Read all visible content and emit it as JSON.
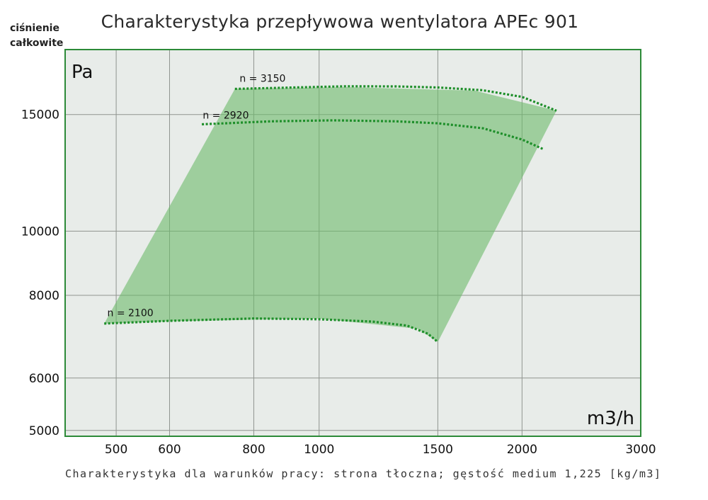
{
  "chart_data": {
    "type": "area",
    "title": "Charakterystyka przepływowa wentylatora APEc 901",
    "ylabel_lines": [
      "ciśnienie",
      "całkowite"
    ],
    "y_unit": "Pa",
    "x_unit": "m3/h",
    "footer": "Charakterystyka dla warunków pracy: strona tłoczna; gęstość medium 1,225 [kg/m3]",
    "x_scale": "log",
    "y_scale": "log",
    "xlim": [
      420,
      3000
    ],
    "ylim": [
      4900,
      18800
    ],
    "x_ticks": [
      500,
      600,
      800,
      1000,
      1500,
      2000,
      3000
    ],
    "y_ticks": [
      5000,
      6000,
      8000,
      10000,
      15000
    ],
    "x_tick_labels": [
      "500",
      "600",
      "800",
      "1000",
      "1500",
      "2000",
      "3000"
    ],
    "y_tick_labels": [
      "5000",
      "6000",
      "8000",
      "10000",
      "15000"
    ],
    "operating_area": [
      [
        480,
        7250
      ],
      [
        750,
        16400
      ],
      [
        1100,
        16500
      ],
      [
        1700,
        16300
      ],
      [
        2250,
        15200
      ],
      [
        1500,
        6800
      ],
      [
        1400,
        7120
      ],
      [
        1000,
        7380
      ],
      [
        600,
        7310
      ],
      [
        480,
        7250
      ]
    ],
    "series": [
      {
        "name": "n = 3150",
        "label": "n = 3150",
        "points": [
          [
            750,
            16400
          ],
          [
            900,
            16470
          ],
          [
            1100,
            16550
          ],
          [
            1300,
            16540
          ],
          [
            1500,
            16480
          ],
          [
            1750,
            16320
          ],
          [
            2000,
            15950
          ],
          [
            2250,
            15200
          ]
        ],
        "label_at": [
          762,
          16800
        ]
      },
      {
        "name": "n = 2920",
        "label": "n = 2920",
        "points": [
          [
            670,
            14500
          ],
          [
            850,
            14650
          ],
          [
            1050,
            14700
          ],
          [
            1300,
            14650
          ],
          [
            1500,
            14550
          ],
          [
            1750,
            14300
          ],
          [
            2000,
            13750
          ],
          [
            2150,
            13300
          ]
        ],
        "label_at": [
          672,
          14780
        ]
      },
      {
        "name": "n = 2100",
        "label": "n = 2100",
        "points": [
          [
            480,
            7250
          ],
          [
            600,
            7320
          ],
          [
            800,
            7380
          ],
          [
            1000,
            7360
          ],
          [
            1200,
            7300
          ],
          [
            1350,
            7200
          ],
          [
            1450,
            7000
          ],
          [
            1500,
            6800
          ]
        ],
        "label_at": [
          485,
          7440
        ]
      }
    ],
    "colors": {
      "fill": "#6dbb6b",
      "line": "#1e8f2a",
      "plot_bg": "#e8ece9",
      "border": "#2c8a38",
      "grid": "#8f948f"
    }
  }
}
